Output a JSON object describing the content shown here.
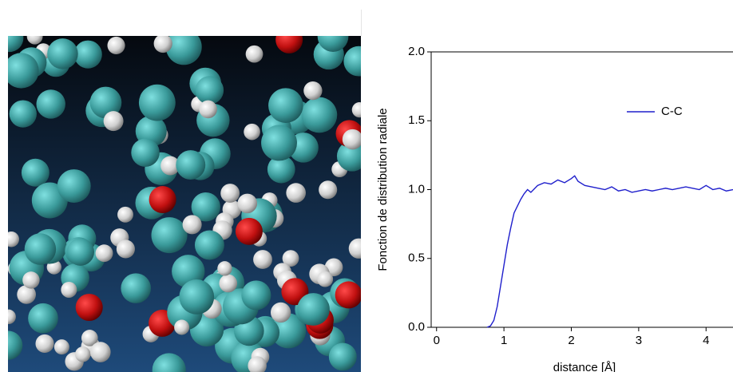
{
  "chart_data": {
    "type": "line",
    "xlabel": "distance [Å]",
    "ylabel": "Fonction de distribution radiale",
    "x": [
      0.75,
      0.8,
      0.85,
      0.9,
      0.95,
      1.0,
      1.05,
      1.1,
      1.15,
      1.2,
      1.25,
      1.3,
      1.35,
      1.4,
      1.5,
      1.6,
      1.7,
      1.8,
      1.9,
      2.0,
      2.05,
      2.1,
      2.2,
      2.3,
      2.4,
      2.5,
      2.6,
      2.7,
      2.8,
      2.9,
      3.0,
      3.1,
      3.2,
      3.3,
      3.4,
      3.5,
      3.6,
      3.7,
      3.8,
      3.9,
      4.0,
      4.1,
      4.2,
      4.3,
      4.4
    ],
    "series": [
      {
        "name": "C-C",
        "color": "#1f1fcc",
        "values": [
          0,
          0.01,
          0.05,
          0.15,
          0.3,
          0.45,
          0.6,
          0.72,
          0.83,
          0.88,
          0.93,
          0.97,
          1.0,
          0.98,
          1.03,
          1.05,
          1.04,
          1.07,
          1.05,
          1.08,
          1.1,
          1.06,
          1.03,
          1.02,
          1.01,
          1.0,
          1.02,
          0.99,
          1.0,
          0.98,
          0.99,
          1.0,
          0.99,
          1.0,
          1.01,
          1.0,
          1.01,
          1.02,
          1.01,
          1.0,
          1.03,
          1.0,
          1.01,
          0.99,
          1.0
        ]
      }
    ],
    "xlim": [
      -0.08,
      4.4
    ],
    "xticks": [
      0,
      1,
      2,
      3,
      4
    ],
    "ylim": [
      0,
      2
    ],
    "yticks": [
      {
        "value": 0,
        "label": "0.0"
      },
      0.5,
      {
        "value": 1,
        "label": "1.0"
      },
      1.5,
      {
        "value": 2,
        "label": "2.0"
      }
    ],
    "legend": "upper-right"
  }
}
